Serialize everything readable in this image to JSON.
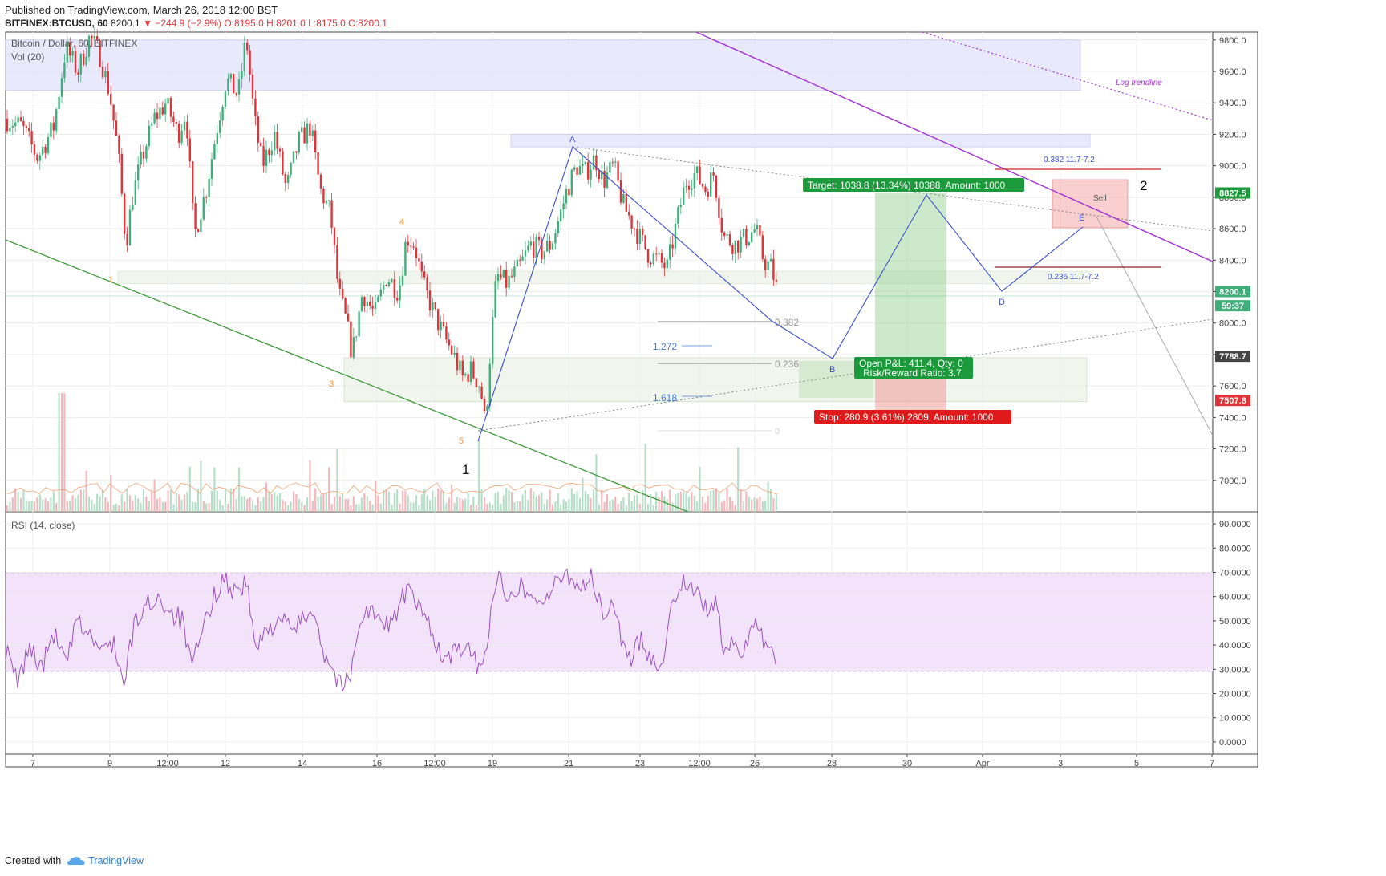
{
  "header": {
    "published": "Published on TradingView.com, March 26, 2018 12:00 BST",
    "symbol": "BITFINEX:BTCUSD, 60",
    "last": "8200.1",
    "change": "−244.9 (−2.9%)",
    "ohlc": "O:8195.0 H:8201.0 L:8175.0 C:8200.1"
  },
  "legend": {
    "title": "Bitcoin / Dollar, 60, BITFINEX",
    "vol": "Vol (20)",
    "rsi": "RSI (14, close)"
  },
  "footer": {
    "created_with": "Created with",
    "brand": "TradingView"
  },
  "colors": {
    "up": "#3fae7a",
    "down": "#e0343a",
    "rsi": "#9b4fbf",
    "rsi_band": "#f2e3fb",
    "wave": "#3a4fd0",
    "trendline_green": "#3f9a3a",
    "trendline_purple": "#a330d6"
  },
  "chart_data": [
    {
      "type": "candlestick",
      "symbol": "BITFINEX:BTCUSD",
      "timeframe": "60",
      "ylim": [
        6800,
        9850
      ],
      "yticks": [
        7000,
        7200,
        7400,
        7600,
        7800,
        8000,
        8200,
        8400,
        8600,
        8800,
        9000,
        9200,
        9400,
        9600,
        9800
      ],
      "price_tags": [
        {
          "label": "8827.5",
          "value": 8827.5,
          "color": "#1a9a3a"
        },
        {
          "label": "8200.1",
          "value": 8200.1,
          "color": "#3fae7a"
        },
        {
          "label": "59:37",
          "value": 8110,
          "color": "#3fae7a"
        },
        {
          "label": "7788.7",
          "value": 7788.7,
          "color": "#444444"
        },
        {
          "label": "7507.8",
          "value": 7507.8,
          "color": "#e0343a"
        }
      ],
      "x_ticks": [
        "7",
        "9",
        "12:00",
        "12",
        "14",
        "16",
        "12:00",
        "19",
        "21",
        "23",
        "12:00",
        "26",
        "28",
        "30",
        "Apr",
        "3",
        "5",
        "7"
      ],
      "price_path": [
        {
          "x": 0,
          "y": 9300
        },
        {
          "x": 20,
          "y": 9250
        },
        {
          "x": 40,
          "y": 9050
        },
        {
          "x": 60,
          "y": 9250
        },
        {
          "x": 75,
          "y": 9750
        },
        {
          "x": 90,
          "y": 9600
        },
        {
          "x": 105,
          "y": 9820
        },
        {
          "x": 118,
          "y": 9700
        },
        {
          "x": 130,
          "y": 9450
        },
        {
          "x": 140,
          "y": 9100
        },
        {
          "x": 150,
          "y": 8500
        },
        {
          "x": 158,
          "y": 8800
        },
        {
          "x": 170,
          "y": 9050
        },
        {
          "x": 185,
          "y": 9300
        },
        {
          "x": 200,
          "y": 9400
        },
        {
          "x": 215,
          "y": 9200
        },
        {
          "x": 225,
          "y": 9350
        },
        {
          "x": 235,
          "y": 8550
        },
        {
          "x": 250,
          "y": 8850
        },
        {
          "x": 262,
          "y": 9200
        },
        {
          "x": 275,
          "y": 9550
        },
        {
          "x": 290,
          "y": 9450
        },
        {
          "x": 300,
          "y": 9820
        },
        {
          "x": 310,
          "y": 9300
        },
        {
          "x": 320,
          "y": 9000
        },
        {
          "x": 335,
          "y": 9200
        },
        {
          "x": 350,
          "y": 8850
        },
        {
          "x": 365,
          "y": 9150
        },
        {
          "x": 380,
          "y": 9250
        },
        {
          "x": 392,
          "y": 8850
        },
        {
          "x": 405,
          "y": 8700
        },
        {
          "x": 415,
          "y": 8200
        },
        {
          "x": 425,
          "y": 8000
        },
        {
          "x": 432,
          "y": 7800
        },
        {
          "x": 445,
          "y": 8200
        },
        {
          "x": 460,
          "y": 8050
        },
        {
          "x": 475,
          "y": 8300
        },
        {
          "x": 490,
          "y": 8200
        },
        {
          "x": 500,
          "y": 8550
        },
        {
          "x": 510,
          "y": 8500
        },
        {
          "x": 520,
          "y": 8250
        },
        {
          "x": 535,
          "y": 8050
        },
        {
          "x": 548,
          "y": 7900
        },
        {
          "x": 558,
          "y": 7800
        },
        {
          "x": 570,
          "y": 7650
        },
        {
          "x": 580,
          "y": 7700
        },
        {
          "x": 592,
          "y": 7600
        },
        {
          "x": 598,
          "y": 7350
        },
        {
          "x": 604,
          "y": 7800
        },
        {
          "x": 612,
          "y": 8300
        },
        {
          "x": 625,
          "y": 8250
        },
        {
          "x": 640,
          "y": 8350
        },
        {
          "x": 655,
          "y": 8500
        },
        {
          "x": 668,
          "y": 8450
        },
        {
          "x": 680,
          "y": 8500
        },
        {
          "x": 692,
          "y": 8700
        },
        {
          "x": 700,
          "y": 8850
        },
        {
          "x": 712,
          "y": 9000
        },
        {
          "x": 722,
          "y": 8950
        },
        {
          "x": 735,
          "y": 9050
        },
        {
          "x": 745,
          "y": 8900
        },
        {
          "x": 758,
          "y": 9000
        },
        {
          "x": 770,
          "y": 8750
        },
        {
          "x": 785,
          "y": 8600
        },
        {
          "x": 800,
          "y": 8450
        },
        {
          "x": 812,
          "y": 8400
        },
        {
          "x": 825,
          "y": 8350
        },
        {
          "x": 835,
          "y": 8600
        },
        {
          "x": 848,
          "y": 8900
        },
        {
          "x": 860,
          "y": 8950
        },
        {
          "x": 873,
          "y": 8850
        },
        {
          "x": 883,
          "y": 8950
        },
        {
          "x": 895,
          "y": 8550
        },
        {
          "x": 910,
          "y": 8500
        },
        {
          "x": 925,
          "y": 8550
        },
        {
          "x": 935,
          "y": 8600
        },
        {
          "x": 945,
          "y": 8400
        },
        {
          "x": 955,
          "y": 8350
        },
        {
          "x": 962,
          "y": 8200
        }
      ],
      "horizontal_zones": [
        {
          "y_top": 9800,
          "y_bottom": 9480,
          "x_start": 0,
          "x_end": 1340
        },
        {
          "y_top": 9200,
          "y_bottom": 9120,
          "x_start": 630,
          "x_end": 1352
        },
        {
          "y_top": 8330,
          "y_bottom": 8250,
          "x_start": 140,
          "x_end": 1352
        },
        {
          "y_top": 7780,
          "y_bottom": 7500,
          "x_start": 422,
          "x_end": 1348
        }
      ],
      "elliott_labels": [
        "1",
        "2",
        "3",
        "4",
        "5"
      ],
      "wave_points": [
        {
          "label": "A",
          "x": 714,
          "y": 9110
        },
        {
          "label": "B",
          "x": 1038,
          "y": 7800
        },
        {
          "label": "D",
          "x": 1249,
          "y": 8230
        },
        {
          "label": "E",
          "x": 1350,
          "y": 8620
        }
      ],
      "fib_levels": [
        {
          "label": "0.382",
          "y": 8050
        },
        {
          "label": "0.236",
          "y": 7800
        },
        {
          "label": "0",
          "y": 7375
        },
        {
          "label": "1.272",
          "y": 7890
        },
        {
          "label": "1.618",
          "y": 7575
        }
      ],
      "annotations": {
        "target": "Target: 1038.8 (13.34%) 10388, Amount: 1000",
        "open_pnl": "Open P&L: 411.4, Qty: 0",
        "rrr": "Risk/Reward Ratio: 3.7",
        "stop": "Stop: 280.9 (3.61%) 2809, Amount: 1000",
        "fib_top": "0.382 11.7-7.2",
        "fib_bottom": "0.236 11.7-7.2",
        "sell": "Sell",
        "log_trendline": "Log trendline",
        "wave_big_1": "1",
        "wave_big_2": "2"
      }
    },
    {
      "type": "line",
      "title": "RSI (14, close)",
      "ylim": [
        -5,
        95
      ],
      "yticks": [
        "0.0000",
        "10.0000",
        "20.0000",
        "30.0000",
        "40.0000",
        "50.0000",
        "60.0000",
        "70.0000",
        "80.0000",
        "90.0000"
      ],
      "band": [
        30,
        70
      ],
      "values": [
        {
          "x": 0,
          "y": 38
        },
        {
          "x": 15,
          "y": 24
        },
        {
          "x": 30,
          "y": 40
        },
        {
          "x": 45,
          "y": 30
        },
        {
          "x": 60,
          "y": 45
        },
        {
          "x": 75,
          "y": 32
        },
        {
          "x": 90,
          "y": 50
        },
        {
          "x": 105,
          "y": 44
        },
        {
          "x": 120,
          "y": 37
        },
        {
          "x": 135,
          "y": 42
        },
        {
          "x": 147,
          "y": 22
        },
        {
          "x": 160,
          "y": 48
        },
        {
          "x": 175,
          "y": 56
        },
        {
          "x": 190,
          "y": 60
        },
        {
          "x": 205,
          "y": 54
        },
        {
          "x": 220,
          "y": 50
        },
        {
          "x": 232,
          "y": 30
        },
        {
          "x": 245,
          "y": 45
        },
        {
          "x": 258,
          "y": 58
        },
        {
          "x": 270,
          "y": 68
        },
        {
          "x": 285,
          "y": 62
        },
        {
          "x": 300,
          "y": 66
        },
        {
          "x": 312,
          "y": 38
        },
        {
          "x": 325,
          "y": 45
        },
        {
          "x": 340,
          "y": 52
        },
        {
          "x": 355,
          "y": 46
        },
        {
          "x": 370,
          "y": 50
        },
        {
          "x": 385,
          "y": 56
        },
        {
          "x": 395,
          "y": 38
        },
        {
          "x": 405,
          "y": 32
        },
        {
          "x": 418,
          "y": 23
        },
        {
          "x": 430,
          "y": 26
        },
        {
          "x": 440,
          "y": 50
        },
        {
          "x": 455,
          "y": 55
        },
        {
          "x": 470,
          "y": 47
        },
        {
          "x": 485,
          "y": 52
        },
        {
          "x": 500,
          "y": 63
        },
        {
          "x": 515,
          "y": 55
        },
        {
          "x": 530,
          "y": 48
        },
        {
          "x": 545,
          "y": 33
        },
        {
          "x": 558,
          "y": 36
        },
        {
          "x": 570,
          "y": 40
        },
        {
          "x": 585,
          "y": 33
        },
        {
          "x": 596,
          "y": 30
        },
        {
          "x": 605,
          "y": 55
        },
        {
          "x": 612,
          "y": 68
        },
        {
          "x": 625,
          "y": 62
        },
        {
          "x": 640,
          "y": 65
        },
        {
          "x": 655,
          "y": 60
        },
        {
          "x": 670,
          "y": 58
        },
        {
          "x": 685,
          "y": 64
        },
        {
          "x": 700,
          "y": 70
        },
        {
          "x": 715,
          "y": 64
        },
        {
          "x": 730,
          "y": 68
        },
        {
          "x": 745,
          "y": 52
        },
        {
          "x": 760,
          "y": 56
        },
        {
          "x": 770,
          "y": 40
        },
        {
          "x": 780,
          "y": 32
        },
        {
          "x": 792,
          "y": 44
        },
        {
          "x": 805,
          "y": 34
        },
        {
          "x": 818,
          "y": 32
        },
        {
          "x": 830,
          "y": 55
        },
        {
          "x": 845,
          "y": 68
        },
        {
          "x": 858,
          "y": 62
        },
        {
          "x": 872,
          "y": 55
        },
        {
          "x": 885,
          "y": 58
        },
        {
          "x": 895,
          "y": 38
        },
        {
          "x": 908,
          "y": 40
        },
        {
          "x": 920,
          "y": 36
        },
        {
          "x": 932,
          "y": 52
        },
        {
          "x": 945,
          "y": 43
        },
        {
          "x": 955,
          "y": 40
        },
        {
          "x": 962,
          "y": 28
        }
      ]
    }
  ]
}
